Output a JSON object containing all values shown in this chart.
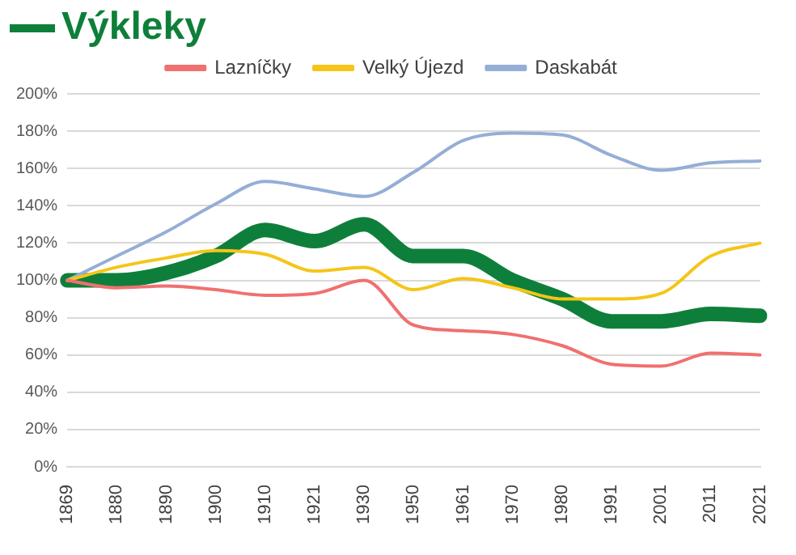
{
  "chart_data": {
    "type": "line",
    "categories": [
      "1869",
      "1880",
      "1890",
      "1900",
      "1910",
      "1921",
      "1930",
      "1950",
      "1961",
      "1970",
      "1980",
      "1991",
      "2001",
      "2011",
      "2021"
    ],
    "series": [
      {
        "name": "Výkleky",
        "color": "#0e7f3a",
        "values": [
          100,
          100,
          104,
          113,
          127,
          121,
          130,
          113,
          113,
          100,
          90,
          78,
          78,
          82,
          81
        ]
      },
      {
        "name": "Lazníčky",
        "color": "#f07070",
        "values": [
          100,
          96,
          97,
          95,
          92,
          93,
          100,
          76,
          73,
          71,
          65,
          55,
          54,
          61,
          60
        ]
      },
      {
        "name": "Velký Újezd",
        "color": "#f5c518",
        "values": [
          100,
          107,
          112,
          116,
          114,
          105,
          107,
          95,
          101,
          96,
          90,
          90,
          93,
          113,
          120
        ]
      },
      {
        "name": "Daskabát",
        "color": "#94aed6",
        "values": [
          100,
          113,
          126,
          141,
          153,
          149,
          145,
          158,
          175,
          179,
          178,
          167,
          159,
          163,
          164
        ]
      }
    ],
    "ylim": [
      0,
      200
    ],
    "yticks": [
      {
        "value": 0,
        "label": "0%"
      },
      {
        "value": 20,
        "label": "20%"
      },
      {
        "value": 40,
        "label": "40%"
      },
      {
        "value": 60,
        "label": "60%"
      },
      {
        "value": 80,
        "label": "80%"
      },
      {
        "value": 100,
        "label": "100%"
      },
      {
        "value": 120,
        "label": "120%"
      },
      {
        "value": 140,
        "label": "140%"
      },
      {
        "value": 160,
        "label": "160%"
      },
      {
        "value": 180,
        "label": "180%"
      },
      {
        "value": 200,
        "label": "200%"
      }
    ],
    "grid": "y",
    "legend": "top",
    "marker": "none",
    "line_style": "solid"
  }
}
